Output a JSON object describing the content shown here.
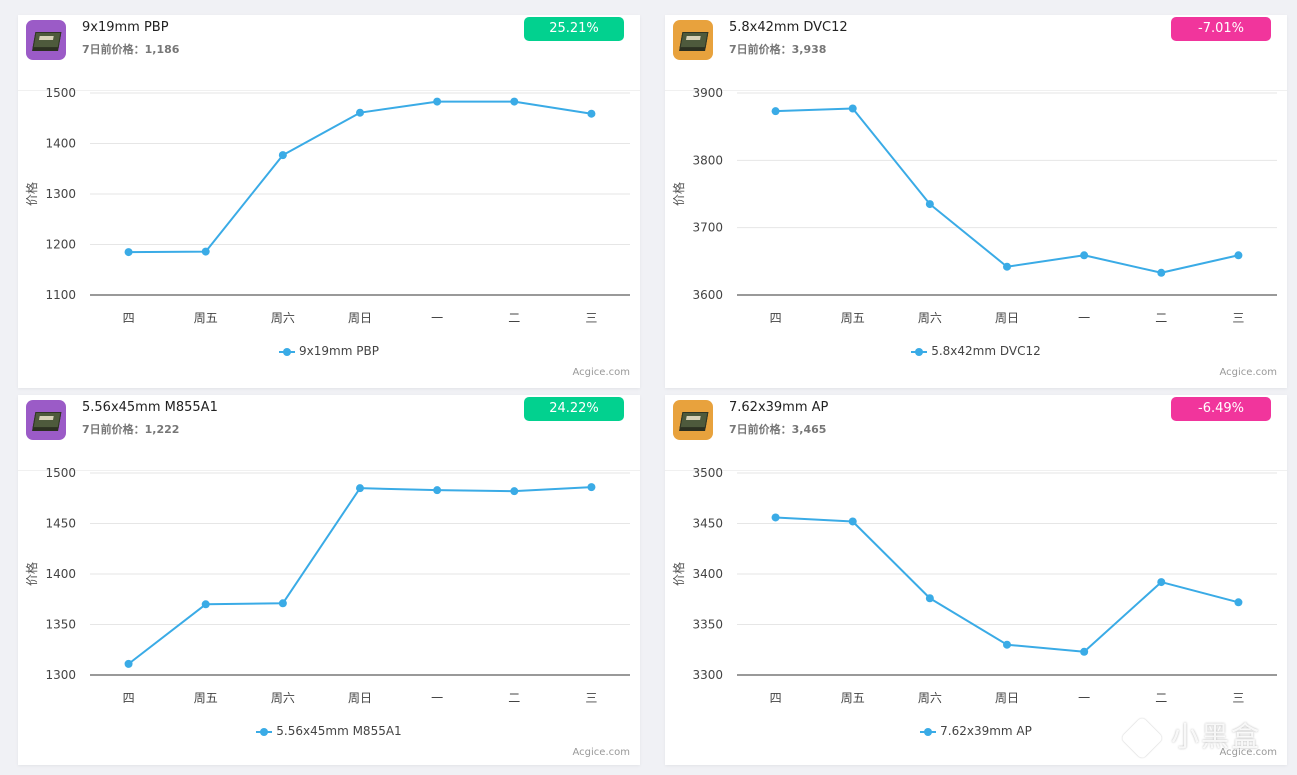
{
  "cards": [
    {
      "name": "9x19mm PBP",
      "prev_label": "7日前价格：",
      "prev_value": "1,186",
      "change": "25.21%",
      "change_color": "#02d18f",
      "thumb_color": "#9b5bc7",
      "credit": "Acgice.com",
      "chart_data": {
        "type": "line",
        "categories": [
          "四",
          "周五",
          "周六",
          "周日",
          "一",
          "二",
          "三"
        ],
        "series": [
          {
            "name": "9x19mm PBP",
            "values": [
              1185,
              1186,
              1377,
              1461,
              1483,
              1483,
              1459
            ]
          }
        ],
        "ylabel": "价格",
        "ylim": [
          1100,
          1500
        ],
        "yticks": [
          1100,
          1200,
          1300,
          1400,
          1500
        ],
        "color": "#3aabe6"
      }
    },
    {
      "name": "5.8x42mm DVC12",
      "prev_label": "7日前价格：",
      "prev_value": "3,938",
      "change": "-7.01%",
      "change_color": "#f1359c",
      "thumb_color": "#e8a23d",
      "credit": "Acgice.com",
      "chart_data": {
        "type": "line",
        "categories": [
          "四",
          "周五",
          "周六",
          "周日",
          "一",
          "二",
          "三"
        ],
        "series": [
          {
            "name": "5.8x42mm DVC12",
            "values": [
              3873,
              3877,
              3735,
              3642,
              3659,
              3633,
              3659
            ]
          }
        ],
        "ylabel": "价格",
        "ylim": [
          3600,
          3900
        ],
        "yticks": [
          3600,
          3700,
          3800,
          3900
        ],
        "color": "#3aabe6"
      }
    },
    {
      "name": "5.56x45mm M855A1",
      "prev_label": "7日前价格：",
      "prev_value": "1,222",
      "change": "24.22%",
      "change_color": "#02d18f",
      "thumb_color": "#9b5bc7",
      "credit": "Acgice.com",
      "chart_data": {
        "type": "line",
        "categories": [
          "四",
          "周五",
          "周六",
          "周日",
          "一",
          "二",
          "三"
        ],
        "series": [
          {
            "name": "5.56x45mm M855A1",
            "values": [
              1311,
              1370,
              1371,
              1485,
              1483,
              1482,
              1486
            ]
          }
        ],
        "ylabel": "价格",
        "ylim": [
          1300,
          1500
        ],
        "yticks": [
          1300,
          1350,
          1400,
          1450,
          1500
        ],
        "color": "#3aabe6"
      }
    },
    {
      "name": "7.62x39mm AP",
      "prev_label": "7日前价格：",
      "prev_value": "3,465",
      "change": "-6.49%",
      "change_color": "#f1359c",
      "thumb_color": "#e8a23d",
      "credit": "Acgice.com",
      "chart_data": {
        "type": "line",
        "categories": [
          "四",
          "周五",
          "周六",
          "周日",
          "一",
          "二",
          "三"
        ],
        "series": [
          {
            "name": "7.62x39mm AP",
            "values": [
              3456,
              3452,
              3376,
              3330,
              3323,
              3392,
              3372
            ]
          }
        ],
        "ylabel": "价格",
        "ylim": [
          3300,
          3500
        ],
        "yticks": [
          3300,
          3350,
          3400,
          3450,
          3500
        ],
        "color": "#3aabe6"
      }
    }
  ],
  "watermark": "小黑盒"
}
